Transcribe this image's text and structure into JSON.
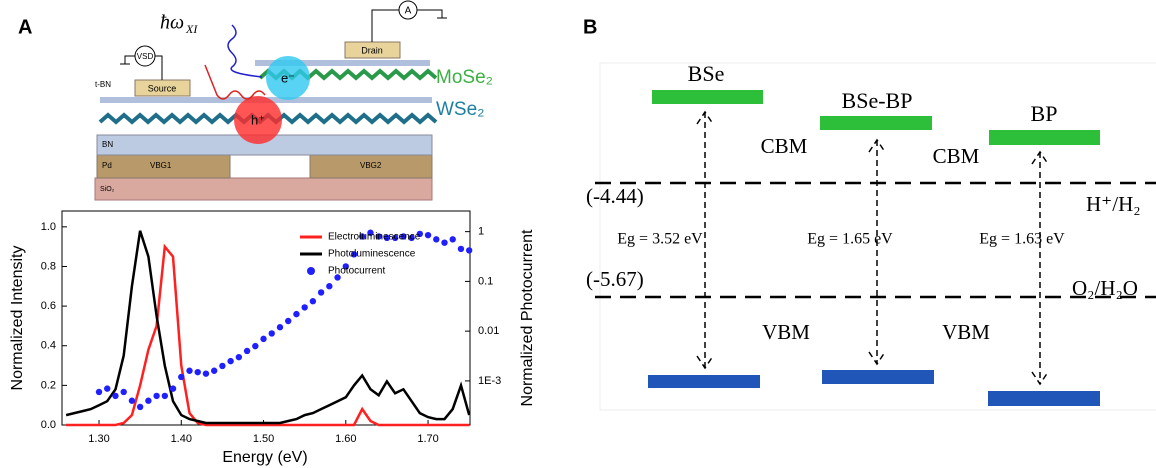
{
  "panel_a": {
    "label": "A",
    "schematic": {
      "photon": "ħω",
      "photon_sub": "XI",
      "vsd": "VSD",
      "ammeter": "A",
      "drain": "Drain",
      "source": "Source",
      "tbn": "t-BN",
      "electron": "e⁻",
      "hole": "h⁺",
      "mose2": "MoSe₂",
      "wse2": "WSe₂",
      "bn": "BN",
      "pd": "Pd",
      "vbg1": "VBG1",
      "vbg2": "VBG2",
      "sio2": "SiO₂"
    }
  },
  "panel_b": {
    "label": "B",
    "materials": [
      "BSe",
      "BSe-BP",
      "BP"
    ],
    "cbm_labels": [
      "CBM",
      "CBM"
    ],
    "vbm_labels": [
      "VBM",
      "VBM"
    ],
    "levels": [
      {
        "value_text": "(-4.44)",
        "couple": "H⁺/H₂"
      },
      {
        "value_text": "(-5.67)",
        "couple": "O₂/H₂O"
      }
    ],
    "gaps": [
      "Eg = 3.52 eV",
      "Eg = 1.65 eV",
      "Eg = 1.63 eV"
    ]
  },
  "chart_data": [
    {
      "type": "line",
      "xlabel": "Energy (eV)",
      "ylabel": "Normalized Intensity",
      "y2label": "Normalized Photocurrent",
      "x": [
        1.26,
        1.27,
        1.28,
        1.29,
        1.3,
        1.31,
        1.32,
        1.33,
        1.34,
        1.35,
        1.36,
        1.37,
        1.38,
        1.39,
        1.4,
        1.41,
        1.42,
        1.43,
        1.44,
        1.45,
        1.46,
        1.47,
        1.48,
        1.49,
        1.5,
        1.51,
        1.52,
        1.53,
        1.54,
        1.55,
        1.56,
        1.57,
        1.58,
        1.59,
        1.6,
        1.61,
        1.62,
        1.63,
        1.64,
        1.65,
        1.66,
        1.67,
        1.68,
        1.69,
        1.7,
        1.71,
        1.72,
        1.73,
        1.74,
        1.75
      ],
      "series": [
        {
          "name": "Electroluminescence",
          "color": "#ff2020",
          "style": "line",
          "values": [
            0,
            0,
            0,
            0,
            0,
            0,
            0,
            0.01,
            0.05,
            0.2,
            0.38,
            0.5,
            0.9,
            0.85,
            0.3,
            0.06,
            0.01,
            0,
            0,
            0,
            0,
            0,
            0,
            0,
            0,
            0,
            0,
            0,
            0,
            0,
            0,
            0,
            0,
            0,
            0,
            0,
            0.08,
            0.02,
            0,
            0,
            0,
            0,
            0,
            0,
            0,
            0,
            0,
            0,
            0,
            0
          ]
        },
        {
          "name": "Photoluminescence",
          "color": "#000000",
          "style": "line",
          "values": [
            0.05,
            0.06,
            0.07,
            0.08,
            0.1,
            0.12,
            0.18,
            0.35,
            0.7,
            0.98,
            0.85,
            0.55,
            0.3,
            0.12,
            0.05,
            0.03,
            0.02,
            0.01,
            0.01,
            0.01,
            0.01,
            0.01,
            0.01,
            0.01,
            0.01,
            0.01,
            0.01,
            0.02,
            0.03,
            0.05,
            0.06,
            0.08,
            0.1,
            0.12,
            0.14,
            0.2,
            0.25,
            0.18,
            0.15,
            0.22,
            0.16,
            0.18,
            0.12,
            0.06,
            0.04,
            0.03,
            0.03,
            0.08,
            0.2,
            0.05
          ]
        },
        {
          "name": "Photocurrent",
          "color": "#2020ff",
          "style": "dots",
          "axis": "y2",
          "values": [
            null,
            null,
            null,
            null,
            0.0006,
            0.0007,
            0.0005,
            0.0006,
            0.0004,
            0.0003,
            0.0004,
            0.0005,
            0.0005,
            0.0007,
            0.0012,
            0.0016,
            0.0015,
            0.0014,
            0.0016,
            0.002,
            0.0025,
            0.003,
            0.004,
            0.005,
            0.007,
            0.009,
            0.012,
            0.016,
            0.022,
            0.03,
            0.04,
            0.06,
            0.08,
            0.12,
            0.2,
            0.35,
            0.8,
            0.95,
            0.8,
            0.75,
            0.75,
            0.8,
            0.75,
            0.9,
            0.85,
            0.7,
            0.6,
            0.7,
            0.45,
            0.42
          ]
        }
      ],
      "xlim": [
        1.255,
        1.751
      ],
      "xticks": [
        {
          "value": 1.3,
          "label": "1.30"
        },
        {
          "value": 1.4,
          "label": "1.40"
        },
        {
          "value": 1.5,
          "label": "1.50"
        },
        {
          "value": 1.6,
          "label": "1.60"
        },
        {
          "value": 1.7,
          "label": "1.70"
        }
      ],
      "ylim": [
        0,
        1.08
      ],
      "yticks": [
        {
          "value": 0,
          "label": "0.0"
        },
        {
          "value": 0.2,
          "label": "0.2"
        },
        {
          "value": 0.4,
          "label": "0.4"
        },
        {
          "value": 0.6,
          "label": "0.6"
        },
        {
          "value": 0.8,
          "label": "0.8"
        },
        {
          "value": 1,
          "label": "1.0"
        }
      ],
      "y2lim": [
        0.00013,
        2.6
      ],
      "y2scale": "log",
      "y2ticks": [
        {
          "value": 0.001,
          "label": "1E-3"
        },
        0.01,
        0.1,
        1
      ],
      "legend": "upper-center"
    }
  ]
}
